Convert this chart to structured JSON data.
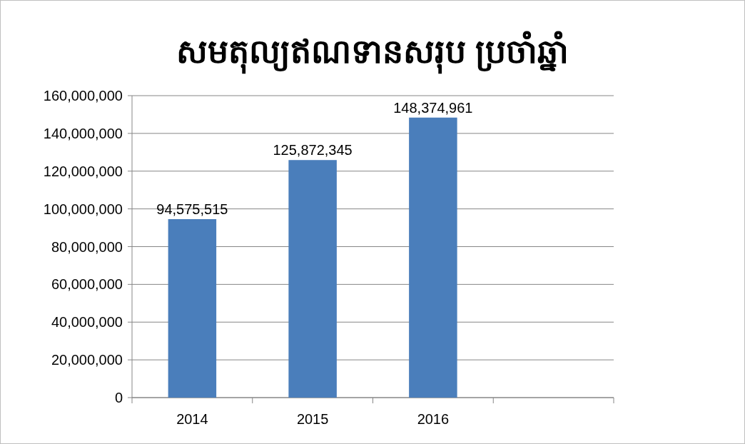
{
  "chart_data": {
    "type": "bar",
    "title": "សមតុល្យឥណទានសរុប ប្រចាំឆ្នាំ",
    "categories": [
      "2014",
      "2015",
      "2016",
      null
    ],
    "values": [
      94575515,
      125872345,
      148374961,
      null
    ],
    "color": "#4a7ebb",
    "ylim": [
      0,
      160000000
    ],
    "yticks": [
      {
        "value": 0,
        "label": "0"
      },
      {
        "value": 20000000,
        "label": "20,000,000"
      },
      {
        "value": 40000000,
        "label": "40,000,000"
      },
      {
        "value": 60000000,
        "label": "60,000,000"
      },
      {
        "value": 80000000,
        "label": "80,000,000"
      },
      {
        "value": 100000000,
        "label": "100,000,000"
      },
      {
        "value": 120000000,
        "label": "120,000,000"
      },
      {
        "value": 140000000,
        "label": "140,000,000"
      },
      {
        "value": 160000000,
        "label": "160,000,000"
      }
    ],
    "grid": "y",
    "value_labels": [
      "94,575,515",
      "125,872,345",
      "148,374,961",
      null
    ]
  }
}
